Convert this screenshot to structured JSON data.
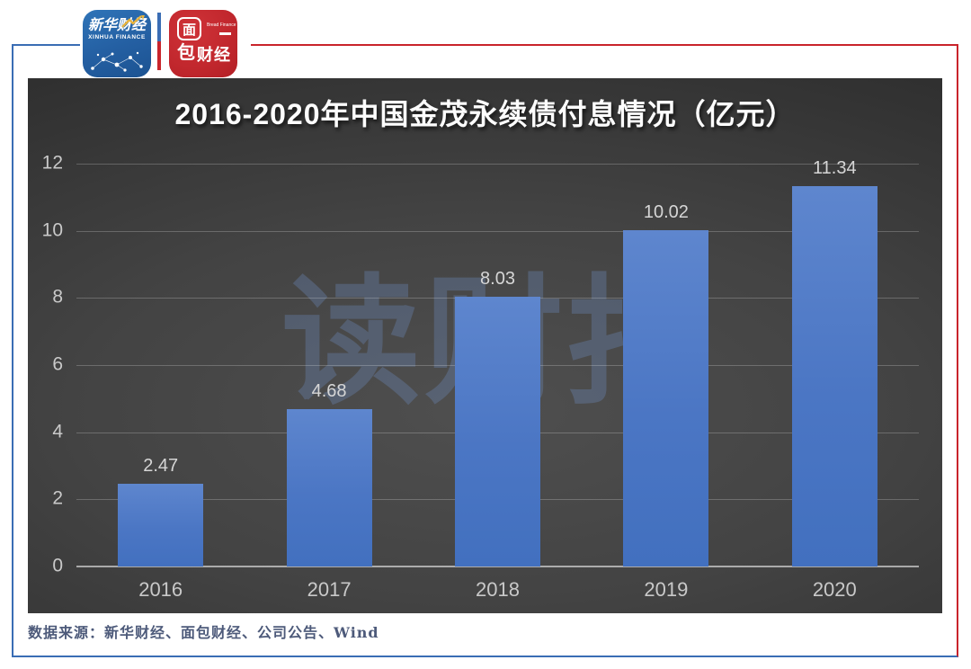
{
  "colors": {
    "frame_blue": "#3a6db4",
    "frame_red": "#c9242b",
    "bar_blue_light": "#5e86ce",
    "bar_blue": "#4b76c4",
    "bar_blue_dark": "#4270bf",
    "watermark": "rgba(110,140,190,0.33)",
    "panel_background": "#3c3c3c"
  },
  "logos": {
    "xinhua": {
      "name_cn": "新华财经",
      "name_en": "XINHUA FINANCE"
    },
    "bread": {
      "char_mian": "面",
      "char_bao": "包",
      "chars_caijing": "财经",
      "name_en": "Bread Finance"
    }
  },
  "watermark": {
    "text": "读财报"
  },
  "chart_data": {
    "type": "bar",
    "title": "2016-2020年中国金茂永续债付息情况（亿元）",
    "categories": [
      "2016",
      "2017",
      "2018",
      "2019",
      "2020"
    ],
    "values": [
      2.47,
      4.68,
      8.03,
      10.02,
      11.34
    ],
    "yticks": [
      0,
      2,
      4,
      6,
      8,
      10,
      12
    ],
    "ylim": [
      0,
      12
    ],
    "xlabel": "",
    "ylabel": "",
    "grid": true,
    "legend": false,
    "bar_color": "#4b76c4",
    "background": "dark"
  },
  "source_line": {
    "text": "数据来源：新华财经、面包财经、公司公告、Wind"
  }
}
